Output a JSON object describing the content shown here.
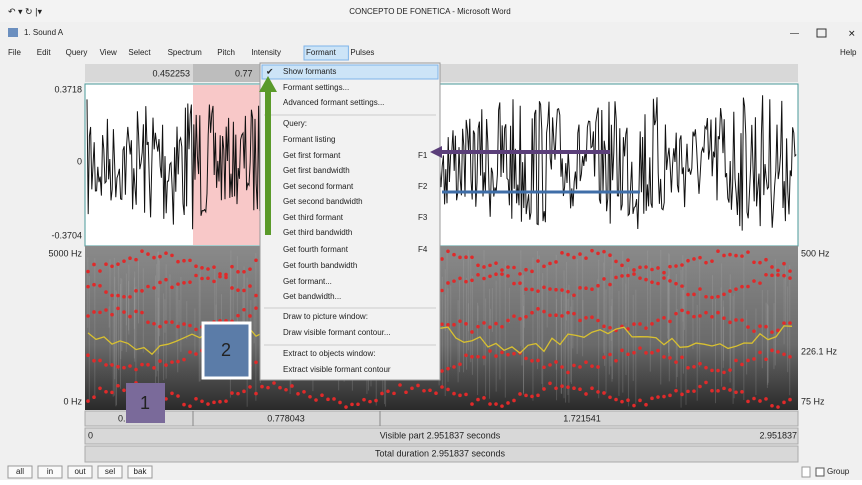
{
  "word_title": "CONCEPTO DE FONETICA - Microsoft Word",
  "window": {
    "title": "1. Sound A",
    "menu": [
      "File",
      "Edit",
      "Query",
      "View",
      "Select",
      "Spectrum",
      "Pitch",
      "Intensity",
      "Formant",
      "Pulses"
    ],
    "help": "Help"
  },
  "selection": {
    "start": "0.452253",
    "end": "0.77"
  },
  "waveform": {
    "top": "0.3718",
    "middle": "0",
    "bottom": "-0.3704"
  },
  "spectrogram": {
    "top": "5000 Hz",
    "bottom": "0 Hz",
    "right_top": "500 Hz",
    "right_middle": "226.1 Hz",
    "right_bottom": "75 Hz"
  },
  "time_row": [
    "0.",
    "0.778043",
    "1.721541"
  ],
  "visible": {
    "start": "0",
    "label": "Visible part 2.951837 seconds",
    "end": "2.951837"
  },
  "total": "Total duration 2.951837 seconds",
  "buttons": [
    "all",
    "in",
    "out",
    "sel",
    "bak"
  ],
  "group": "Group",
  "badges": [
    "1",
    "2"
  ],
  "formant_menu": [
    {
      "label": "Show formants",
      "checked": true
    },
    {
      "label": "Formant settings..."
    },
    {
      "label": "Advanced formant settings..."
    },
    {
      "label": "Query:",
      "disabled": true
    },
    {
      "label": "Formant listing"
    },
    {
      "label": "Get first formant",
      "shortcut": "F1"
    },
    {
      "label": "Get first bandwidth"
    },
    {
      "label": "Get second formant",
      "shortcut": "F2"
    },
    {
      "label": "Get second bandwidth"
    },
    {
      "label": "Get third formant",
      "shortcut": "F3"
    },
    {
      "label": "Get third bandwidth"
    },
    {
      "label": "Get fourth formant",
      "shortcut": "F4"
    },
    {
      "label": "Get fourth bandwidth"
    },
    {
      "label": "Get formant..."
    },
    {
      "label": "Get bandwidth..."
    },
    {
      "label": "Draw to picture window:",
      "disabled": true
    },
    {
      "label": "Draw visible formant contour..."
    },
    {
      "label": "Extract to objects window:",
      "disabled": true
    },
    {
      "label": "Extract visible formant contour"
    }
  ]
}
